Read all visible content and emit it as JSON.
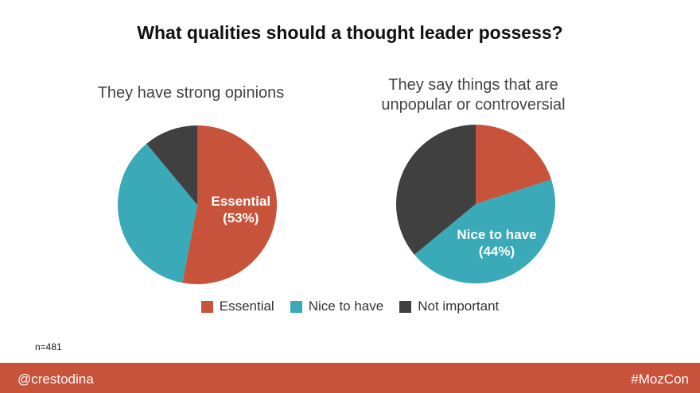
{
  "title": "What qualities should a thought leader possess?",
  "colors": {
    "essential": "#c7533b",
    "nice": "#3aa9b8",
    "not_important": "#404040",
    "footer": "#c7533b"
  },
  "chart_data": [
    {
      "type": "pie",
      "title": "They have strong opinions",
      "slices": [
        {
          "label": "Essential",
          "value": 53,
          "color": "#c7533b",
          "data_label": "Essential",
          "data_value": "(53%)"
        },
        {
          "label": "Nice to have",
          "value": 36,
          "color": "#3aa9b8"
        },
        {
          "label": "Not important",
          "value": 11,
          "color": "#404040"
        }
      ]
    },
    {
      "type": "pie",
      "title_lines": [
        "They say things that are",
        "unpopular or controversial"
      ],
      "slices": [
        {
          "label": "Essential",
          "value": 20,
          "color": "#c7533b"
        },
        {
          "label": "Nice to have",
          "value": 44,
          "color": "#3aa9b8",
          "data_label": "Nice to have",
          "data_value": "(44%)"
        },
        {
          "label": "Not important",
          "value": 36,
          "color": "#404040"
        }
      ]
    }
  ],
  "legend": [
    {
      "label": "Essential",
      "color": "#c7533b"
    },
    {
      "label": "Nice to have",
      "color": "#3aa9b8"
    },
    {
      "label": "Not important",
      "color": "#404040"
    }
  ],
  "note": "n=481",
  "footer": {
    "left": "@crestodina",
    "right": "#MozCon"
  }
}
